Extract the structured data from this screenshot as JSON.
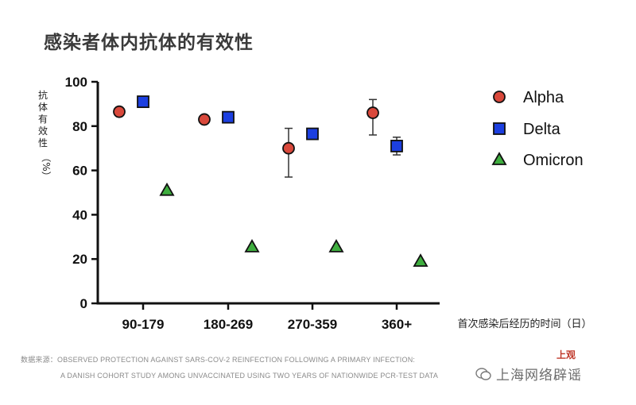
{
  "header": {
    "title": "感染者体内抗体的有效性"
  },
  "source": {
    "line1": "数据来源：OBSERVED PROTECTION AGAINST SARS-COV-2 REINFECTION FOLLOWING A PRIMARY INFECTION:",
    "line2": "A DANISH COHORT STUDY AMONG UNVACCINATED USING TWO YEARS OF NATIONWIDE PCR-TEST DATA"
  },
  "watermark": {
    "text": "上海网络辟谣",
    "logo_text": "上观"
  },
  "chart_data": {
    "type": "scatter",
    "title": "感染者体内抗体的有效性",
    "xlabel": "首次感染后经历的时间（日）",
    "ylabel": "抗体有效性（%）",
    "ylabel_lines": [
      "抗",
      "体",
      "有",
      "效",
      "性"
    ],
    "ylabel_unit": "（%）",
    "ylim": [
      0,
      100
    ],
    "yticks": [
      "0",
      "20",
      "40",
      "60",
      "80",
      "100"
    ],
    "categories": [
      "90-179",
      "180-269",
      "270-359",
      "360+"
    ],
    "grid": false,
    "legend_position": "right",
    "series": [
      {
        "name": "Alpha",
        "marker": "circle",
        "color": "#d9483b",
        "values": [
          86.5,
          83,
          70,
          86
        ],
        "error_low": [
          null,
          null,
          57,
          76
        ],
        "error_high": [
          null,
          null,
          79,
          92
        ]
      },
      {
        "name": "Delta",
        "marker": "square",
        "color": "#1c3fe0",
        "values": [
          91,
          84,
          76.5,
          71
        ],
        "error_low": [
          null,
          null,
          null,
          67
        ],
        "error_high": [
          null,
          null,
          null,
          75
        ]
      },
      {
        "name": "Omicron",
        "marker": "triangle",
        "color": "#3fae3f",
        "values": [
          51,
          25.5,
          25.5,
          19
        ],
        "error_low": [
          null,
          null,
          null,
          null
        ],
        "error_high": [
          null,
          null,
          null,
          null
        ]
      }
    ]
  }
}
